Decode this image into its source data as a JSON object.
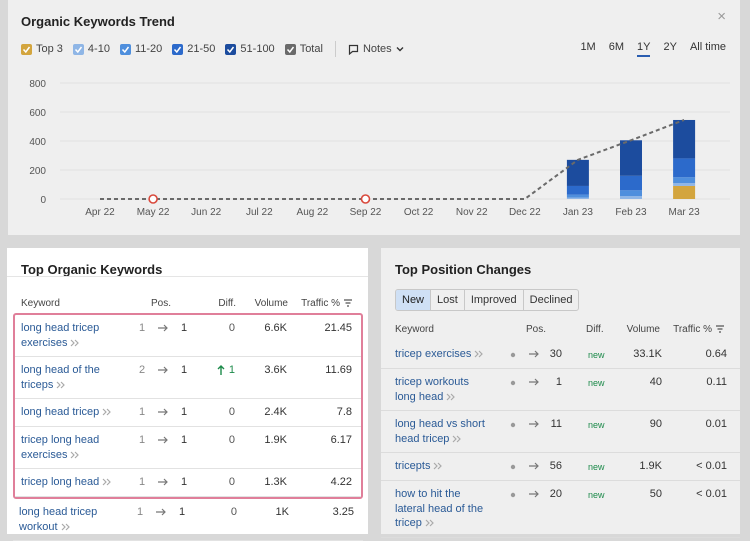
{
  "trend": {
    "title": "Organic Keywords Trend",
    "close": "×",
    "notes": "Notes",
    "ranges": [
      "1M",
      "6M",
      "1Y",
      "2Y",
      "All time"
    ],
    "active_range": "1Y",
    "chart": {
      "type": "bar",
      "stacked": true,
      "grid": true,
      "categories": [
        "Apr 22",
        "May 22",
        "Jun 22",
        "Jul 22",
        "Aug 22",
        "Sep 22",
        "Oct 22",
        "Nov 22",
        "Dec 22",
        "Jan 23",
        "Feb 23",
        "Mar 23"
      ],
      "ylim": [
        0,
        800
      ],
      "yticks": [
        0,
        200,
        400,
        600,
        800
      ],
      "series": [
        {
          "name": "Top 3",
          "color": "#d3a53e",
          "values": [
            null,
            null,
            null,
            null,
            null,
            null,
            null,
            null,
            null,
            0,
            0,
            90
          ]
        },
        {
          "name": "4-10",
          "color": "#8fb6e6",
          "values": [
            null,
            null,
            null,
            null,
            null,
            null,
            null,
            null,
            null,
            10,
            20,
            20
          ]
        },
        {
          "name": "11-20",
          "color": "#4f8fdd",
          "values": [
            null,
            null,
            null,
            null,
            null,
            null,
            null,
            null,
            null,
            20,
            40,
            40
          ]
        },
        {
          "name": "21-50",
          "color": "#2c6acb",
          "values": [
            null,
            null,
            null,
            null,
            null,
            null,
            null,
            null,
            null,
            60,
            100,
            130
          ]
        },
        {
          "name": "51-100",
          "color": "#1c4c9e",
          "values": [
            null,
            null,
            null,
            null,
            null,
            null,
            null,
            null,
            null,
            180,
            245,
            265
          ]
        },
        {
          "name": "Total",
          "color": "#6a6a6a",
          "type": "line",
          "values": [
            0,
            0,
            0,
            0,
            0,
            0,
            0,
            0,
            0,
            270,
            405,
            545
          ]
        }
      ]
    }
  },
  "top_keywords": {
    "title": "Top Organic Keywords",
    "columns": [
      "Keyword",
      "Pos.",
      "Diff.",
      "Volume",
      "Traffic %"
    ],
    "rows": [
      {
        "keyword": "long head tricep exercises",
        "prev_pos": "1",
        "pos": "1",
        "diff": "0",
        "volume": "6.6K",
        "traffic": "21.45",
        "highlighted": true
      },
      {
        "keyword": "long head of the triceps",
        "prev_pos": "2",
        "pos": "1",
        "diff": "1",
        "diff_direction": "up",
        "volume": "3.6K",
        "traffic": "11.69",
        "highlighted": true
      },
      {
        "keyword": "long head tricep",
        "prev_pos": "1",
        "pos": "1",
        "diff": "0",
        "volume": "2.4K",
        "traffic": "7.8",
        "highlighted": true
      },
      {
        "keyword": "tricep long head exercises",
        "prev_pos": "1",
        "pos": "1",
        "diff": "0",
        "volume": "1.9K",
        "traffic": "6.17",
        "highlighted": true
      },
      {
        "keyword": "tricep long head",
        "prev_pos": "1",
        "pos": "1",
        "diff": "0",
        "volume": "1.3K",
        "traffic": "4.22",
        "highlighted": true
      },
      {
        "keyword": "long head tricep workout",
        "prev_pos": "1",
        "pos": "1",
        "diff": "0",
        "volume": "1K",
        "traffic": "3.25",
        "highlighted": false
      }
    ]
  },
  "position_changes": {
    "title": "Top Position Changes",
    "tabs": [
      "New",
      "Lost",
      "Improved",
      "Declined"
    ],
    "active_tab": "New",
    "columns": [
      "Keyword",
      "Pos.",
      "Diff.",
      "Volume",
      "Traffic %"
    ],
    "rows": [
      {
        "keyword": "tricep exercises",
        "pos": "30",
        "diff": "new",
        "volume": "33.1K",
        "traffic": "0.64"
      },
      {
        "keyword": "tricep workouts long head",
        "pos": "1",
        "diff": "new",
        "volume": "40",
        "traffic": "0.11"
      },
      {
        "keyword": "long head vs short head tricep",
        "pos": "11",
        "diff": "new",
        "volume": "90",
        "traffic": "0.01"
      },
      {
        "keyword": "tricepts",
        "pos": "56",
        "diff": "new",
        "volume": "1.9K",
        "traffic": "< 0.01"
      },
      {
        "keyword": "how to hit the lateral head of the tricep",
        "pos": "20",
        "diff": "new",
        "volume": "50",
        "traffic": "< 0.01"
      }
    ]
  }
}
